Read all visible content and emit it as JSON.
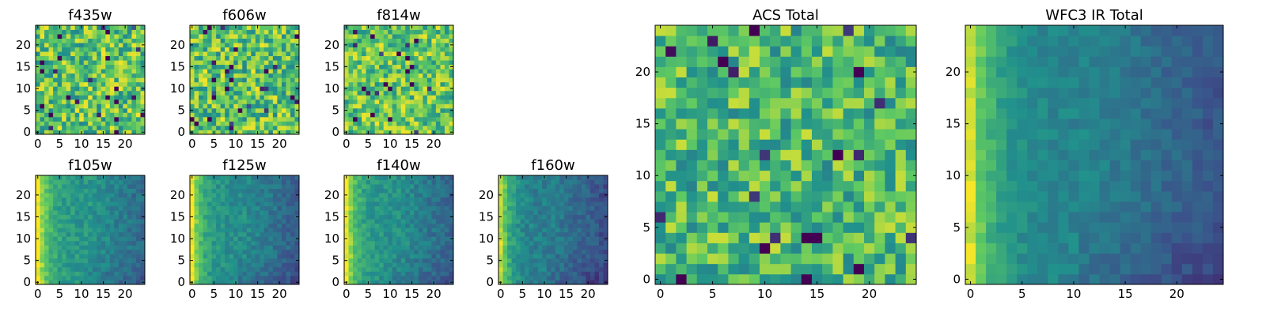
{
  "figure": {
    "description": "Grid of heatmap panels",
    "colormap": [
      "#440154",
      "#3b528b",
      "#21918c",
      "#5ec962",
      "#fde725"
    ]
  },
  "chart_data": [
    {
      "type": "heatmap",
      "title": "f435w",
      "rows": 25,
      "cols": 25,
      "pattern": "noise",
      "level": 0.72,
      "spread": 0.22,
      "seed": 11,
      "xticks": [
        0,
        5,
        10,
        15,
        20
      ],
      "yticks": [
        0,
        5,
        10,
        15,
        20
      ],
      "xlim": [
        -0.5,
        24.5
      ],
      "ylim": [
        -0.5,
        24.5
      ]
    },
    {
      "type": "heatmap",
      "title": "f606w",
      "rows": 25,
      "cols": 25,
      "pattern": "noise",
      "level": 0.72,
      "spread": 0.22,
      "seed": 23,
      "xticks": [
        0,
        5,
        10,
        15,
        20
      ],
      "yticks": [
        0,
        5,
        10,
        15,
        20
      ],
      "xlim": [
        -0.5,
        24.5
      ],
      "ylim": [
        -0.5,
        24.5
      ]
    },
    {
      "type": "heatmap",
      "title": "f814w",
      "rows": 25,
      "cols": 25,
      "pattern": "noise",
      "level": 0.74,
      "spread": 0.2,
      "seed": 37,
      "xticks": [
        0,
        5,
        10,
        15,
        20
      ],
      "yticks": [
        0,
        5,
        10,
        15,
        20
      ],
      "xlim": [
        -0.5,
        24.5
      ],
      "ylim": [
        -0.5,
        24.5
      ]
    },
    {
      "type": "heatmap",
      "title": "f105w",
      "rows": 25,
      "cols": 25,
      "pattern": "gradient",
      "level": 0.52,
      "spread": 0.08,
      "seed": 41,
      "xticks": [
        0,
        5,
        10,
        15,
        20
      ],
      "yticks": [
        0,
        5,
        10,
        15,
        20
      ],
      "xlim": [
        -0.5,
        24.5
      ],
      "ylim": [
        -0.5,
        24.5
      ]
    },
    {
      "type": "heatmap",
      "title": "f125w",
      "rows": 25,
      "cols": 25,
      "pattern": "gradient",
      "level": 0.48,
      "spread": 0.08,
      "seed": 53,
      "xticks": [
        0,
        5,
        10,
        15,
        20
      ],
      "yticks": [
        0,
        5,
        10,
        15,
        20
      ],
      "xlim": [
        -0.5,
        24.5
      ],
      "ylim": [
        -0.5,
        24.5
      ]
    },
    {
      "type": "heatmap",
      "title": "f140w",
      "rows": 25,
      "cols": 25,
      "pattern": "gradient",
      "level": 0.5,
      "spread": 0.08,
      "seed": 67,
      "xticks": [
        0,
        5,
        10,
        15,
        20
      ],
      "yticks": [
        0,
        5,
        10,
        15,
        20
      ],
      "xlim": [
        -0.5,
        24.5
      ],
      "ylim": [
        -0.5,
        24.5
      ]
    },
    {
      "type": "heatmap",
      "title": "f160w",
      "rows": 25,
      "cols": 25,
      "pattern": "gradient",
      "level": 0.42,
      "spread": 0.08,
      "seed": 79,
      "xticks": [
        0,
        5,
        10,
        15,
        20
      ],
      "yticks": [
        0,
        5,
        10,
        15,
        20
      ],
      "xlim": [
        -0.5,
        24.5
      ],
      "ylim": [
        -0.5,
        24.5
      ]
    },
    {
      "type": "heatmap",
      "title": "ACS Total",
      "rows": 25,
      "cols": 25,
      "pattern": "noise",
      "level": 0.68,
      "spread": 0.2,
      "seed": 97,
      "xticks": [
        0,
        5,
        10,
        15,
        20
      ],
      "yticks": [
        0,
        5,
        10,
        15,
        20
      ],
      "xlim": [
        -0.5,
        24.5
      ],
      "ylim": [
        -0.5,
        24.5
      ]
    },
    {
      "type": "heatmap",
      "title": "WFC3 IR Total",
      "rows": 25,
      "cols": 25,
      "pattern": "gradient",
      "level": 0.44,
      "spread": 0.06,
      "seed": 113,
      "xticks": [
        0,
        5,
        10,
        15,
        20
      ],
      "yticks": [
        0,
        5,
        10,
        15,
        20
      ],
      "xlim": [
        -0.5,
        24.5
      ],
      "ylim": [
        -0.5,
        24.5
      ]
    }
  ]
}
